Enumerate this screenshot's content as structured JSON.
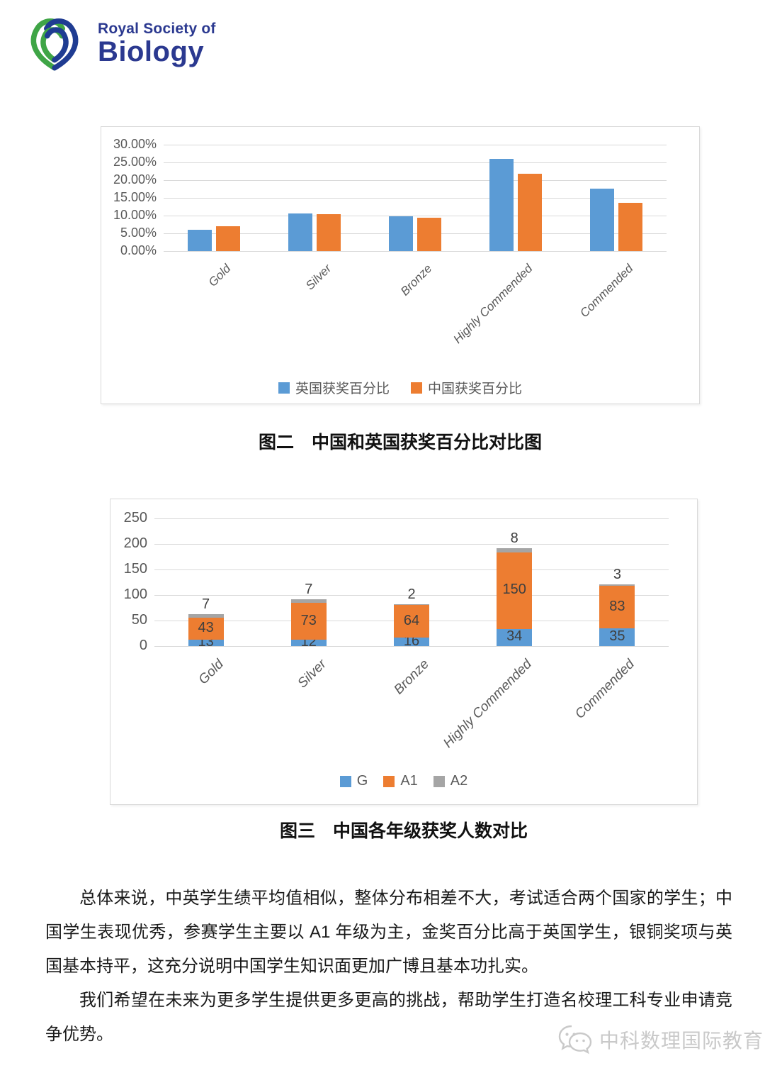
{
  "logo": {
    "line1": "Royal Society of",
    "line2": "Biology"
  },
  "captions": {
    "figure2": "图二　中国和英国获奖百分比对比图",
    "figure3": "图三　中国各年级获奖人数对比"
  },
  "paragraphs": {
    "p1": "总体来说，中英学生绩平均值相似，整体分布相差不大，考试适合两个国家的学生；中国学生表现优秀，参赛学生主要以 A1 年级为主，金奖百分比高于英国学生，银铜奖项与英国基本持平，这充分说明中国学生知识面更加广博且基本功扎实。",
    "p2": "我们希望在未来为更多学生提供更多更高的挑战，帮助学生打造名校理工科专业申请竞争优势。"
  },
  "watermark": {
    "text": "中科数理国际教育"
  },
  "colors": {
    "blue": "#5B9BD5",
    "orange": "#ED7D31",
    "gray": "#A5A5A5",
    "grid": "#D9D9D9",
    "axis_text": "#595959",
    "logo_navy": "#2b3990",
    "logo_green": "#3FA546",
    "watermark_gray": "#c9c9c9"
  },
  "chart_data": [
    {
      "id": "figure2",
      "type": "bar",
      "stacked": false,
      "title": "",
      "categories": [
        "Gold",
        "Silver",
        "Bronze",
        "Highly Commended",
        "Commended"
      ],
      "series": [
        {
          "name": "英国获奖百分比",
          "color": "#5B9BD5",
          "values": [
            6.0,
            10.6,
            9.8,
            26.0,
            17.7
          ]
        },
        {
          "name": "中国获奖百分比",
          "color": "#ED7D31",
          "values": [
            7.0,
            10.4,
            9.4,
            21.9,
            13.6
          ]
        }
      ],
      "ylim": [
        0,
        30
      ],
      "ytick_labels": [
        "30.00%",
        "25.00%",
        "20.00%",
        "15.00%",
        "10.00%",
        "5.00%",
        "0.00%"
      ],
      "grid": true,
      "legend_position": "bottom",
      "data_labels": false
    },
    {
      "id": "figure3",
      "type": "bar",
      "stacked": true,
      "title": "",
      "categories": [
        "Gold",
        "Silver",
        "Bronze",
        "Highly Commended",
        "Commended"
      ],
      "series": [
        {
          "name": "G",
          "color": "#5B9BD5",
          "values": [
            13,
            12,
            16,
            34,
            35
          ]
        },
        {
          "name": "A1",
          "color": "#ED7D31",
          "values": [
            43,
            73,
            64,
            150,
            83
          ]
        },
        {
          "name": "A2",
          "color": "#A5A5A5",
          "values": [
            7,
            7,
            2,
            8,
            3
          ]
        }
      ],
      "ylim": [
        0,
        250
      ],
      "ytick_labels": [
        "250",
        "200",
        "150",
        "100",
        "50",
        "0"
      ],
      "grid": true,
      "legend_position": "bottom",
      "data_labels": true
    }
  ]
}
